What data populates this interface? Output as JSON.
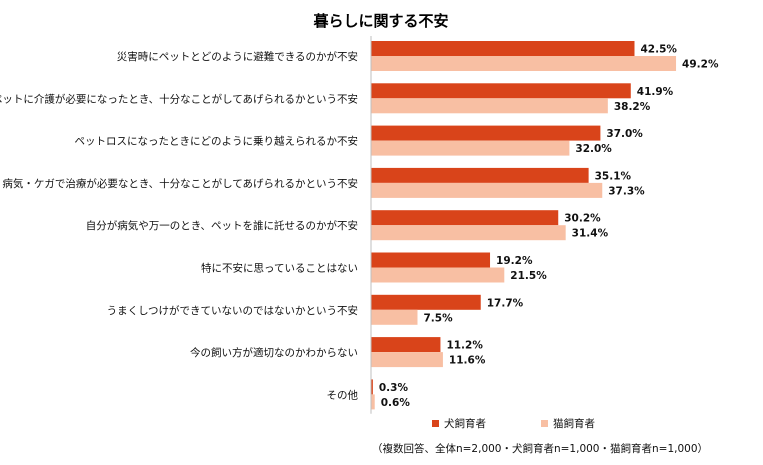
{
  "chart_data": {
    "type": "bar",
    "orientation": "horizontal",
    "title": "暮らしに関する不安",
    "categories": [
      "災害時にペットとどのように避難できるのかが不安",
      "ペットに介護が必要になったとき、十分なことがしてあげられるかという不安",
      "ペットロスになったときにどのように乗り越えられるか不安",
      "病気・ケガで治療が必要なとき、十分なことがしてあげられるかという不安",
      "自分が病気や万一のとき、ペットを誰に託せるのかが不安",
      "特に不安に思っていることはない",
      "うまくしつけができていないのではないかという不安",
      "今の飼い方が適切なのかわからない",
      "その他"
    ],
    "series": [
      {
        "name": "犬飼育者",
        "color": "#D9441A",
        "values": [
          42.5,
          41.9,
          37.0,
          35.1,
          30.2,
          19.2,
          17.7,
          11.2,
          0.3
        ],
        "labels": [
          "42.5%",
          "41.9%",
          "37.0%",
          "35.1%",
          "30.2%",
          "19.2%",
          "17.7%",
          "11.2%",
          "0.3%"
        ]
      },
      {
        "name": "猫飼育者",
        "color": "#F8BFA3",
        "values": [
          49.2,
          38.2,
          32.0,
          37.3,
          31.4,
          21.5,
          7.5,
          11.6,
          0.6
        ],
        "labels": [
          "49.2%",
          "38.2%",
          "32.0%",
          "37.3%",
          "31.4%",
          "21.5%",
          "7.5%",
          "11.6%",
          "0.6%"
        ]
      }
    ],
    "unit": "%",
    "xlim": [
      0,
      50
    ],
    "grid": false,
    "legend_position": "bottom-right",
    "note": "（複数回答、全体n=2,000・犬飼育者n=1,000・猫飼育者n=1,000）"
  }
}
